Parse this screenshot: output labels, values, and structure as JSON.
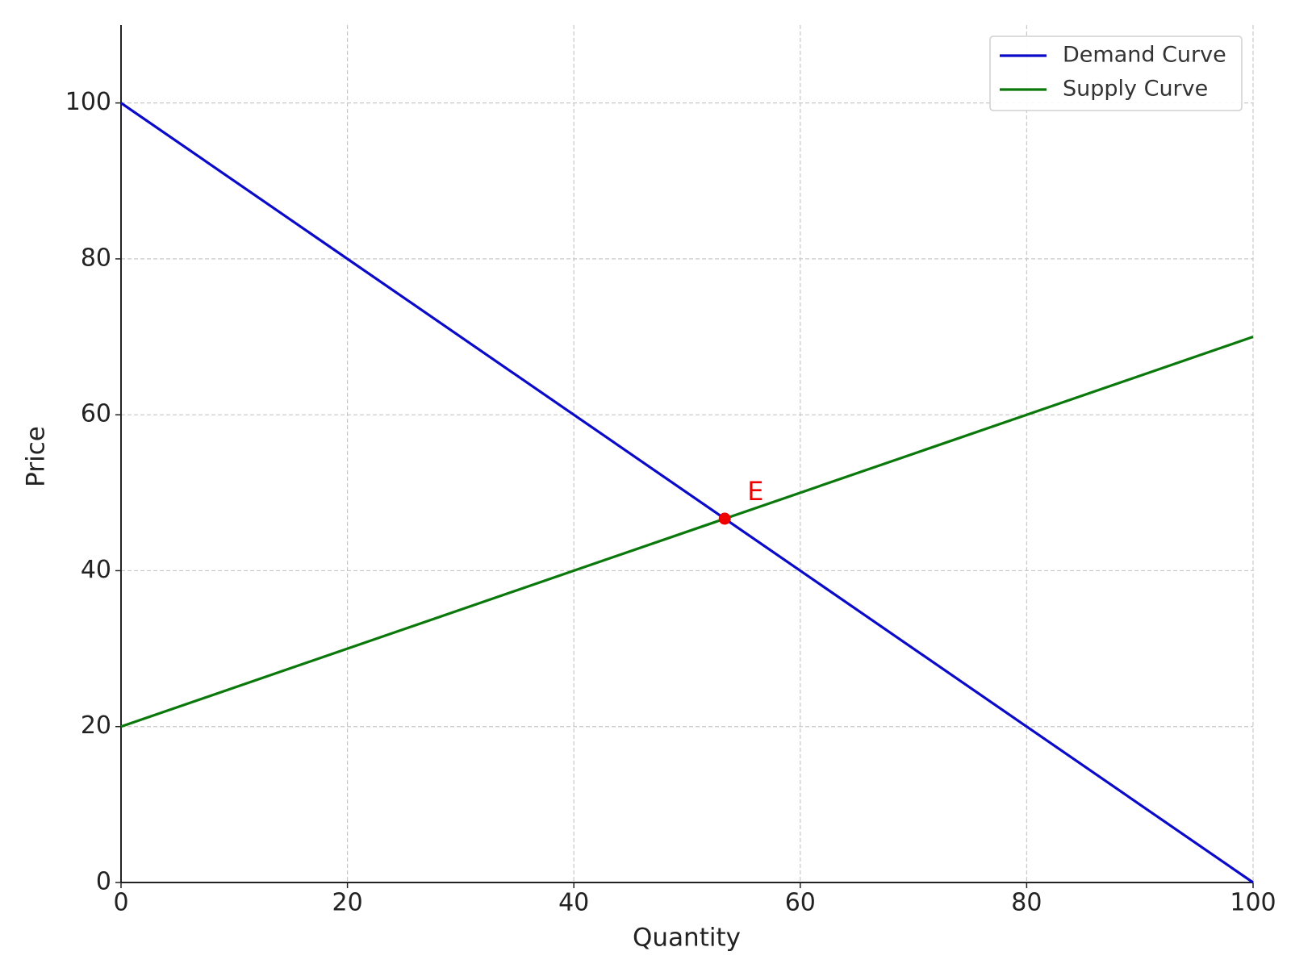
{
  "chart_data": {
    "type": "line",
    "x_label": "Quantity",
    "y_label": "Price",
    "x": [
      0,
      100
    ],
    "series": [
      {
        "name": "Demand Curve",
        "color": "#0a0ac8",
        "values": [
          100,
          0
        ]
      },
      {
        "name": "Supply Curve",
        "color": "#0a780a",
        "values": [
          20,
          70
        ]
      }
    ],
    "equilibrium": {
      "label": "E",
      "x": 53.33,
      "y": 46.67,
      "color": "#ee0000"
    },
    "xlim": [
      0,
      100
    ],
    "ylim": [
      0,
      110
    ],
    "xticks": [
      0,
      20,
      40,
      60,
      80,
      100
    ],
    "yticks": [
      0,
      20,
      40,
      60,
      80,
      100
    ],
    "grid": true,
    "legend": "upper right"
  }
}
